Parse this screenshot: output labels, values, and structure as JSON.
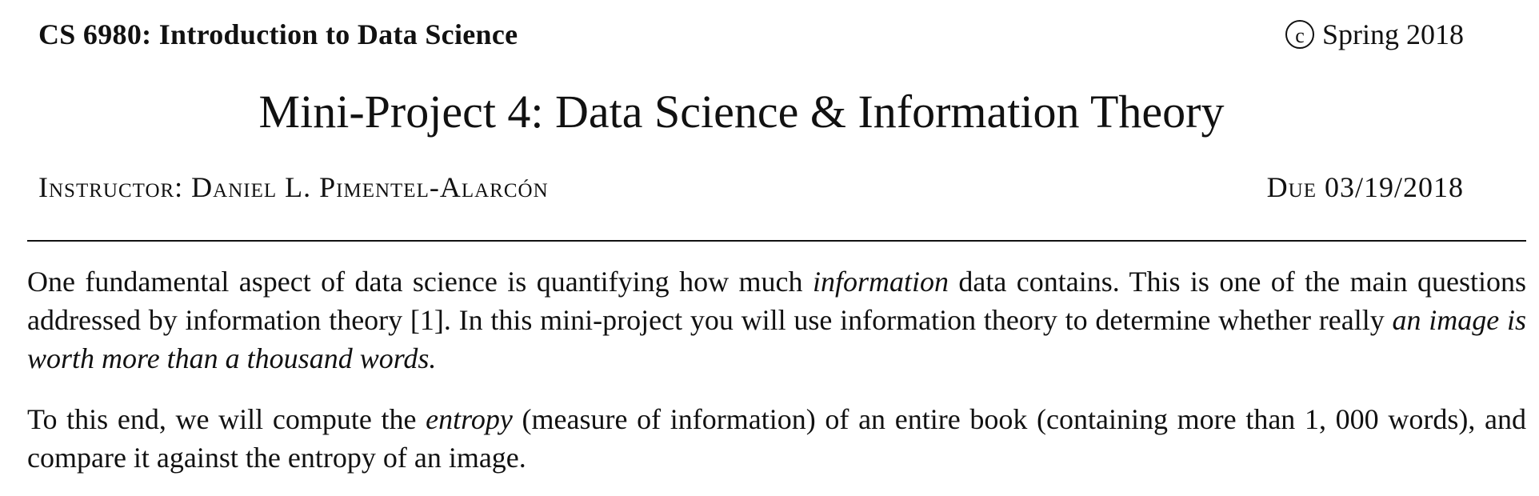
{
  "header": {
    "course": "CS 6980: Introduction to Data Science",
    "copyright_symbol": "c",
    "term": "Spring 2018"
  },
  "title": "Mini-Project 4: Data Science & Information Theory",
  "instructor": {
    "label": "Instructor:",
    "name": "Daniel L. Pimentel-Alarcón"
  },
  "due": "Due 03/19/2018",
  "paragraphs": {
    "p1": {
      "part1": "One fundamental aspect of data science is quantifying how much ",
      "part2_italic": "information",
      "part3": " data contains. This is one of the main questions addressed by information theory [1]. In this mini-project you will use information theory to determine whether really ",
      "part4_italic": "an image is worth more than a thousand words.",
      "part5": ""
    },
    "p2": {
      "part1": "To this end, we will compute the ",
      "part2_italic": "entropy",
      "part3": " (measure of information) of an entire book (containing more than 1, 000 words), and compare it against the entropy of an image."
    }
  }
}
